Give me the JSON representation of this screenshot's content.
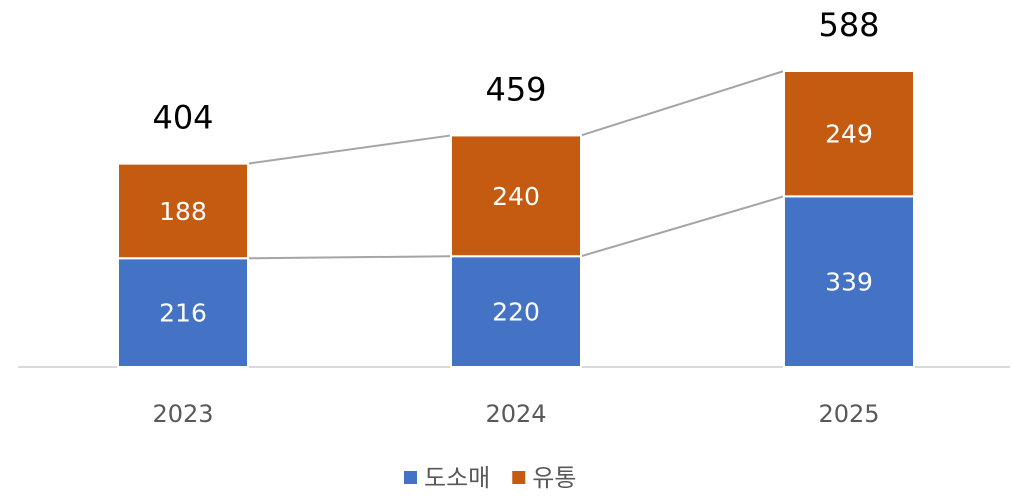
{
  "chart_data": {
    "type": "stacked_bar",
    "categories": [
      "2023",
      "2024",
      "2025"
    ],
    "series": [
      {
        "name": "도소매",
        "color": "#4472c4",
        "values": [
          216,
          220,
          339
        ]
      },
      {
        "name": "유통",
        "color": "#c55a11",
        "values": [
          188,
          240,
          249
        ]
      }
    ],
    "totals": [
      404,
      459,
      588
    ],
    "legend": "bottom"
  }
}
